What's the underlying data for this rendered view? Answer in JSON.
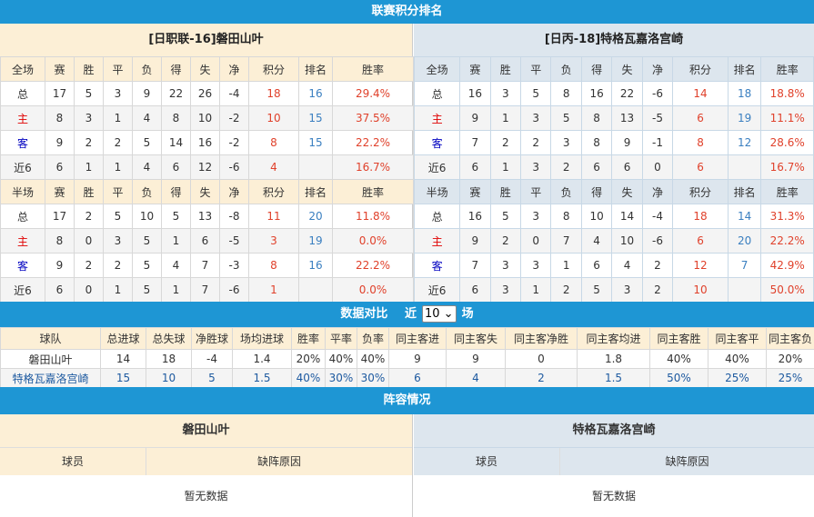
{
  "title": "联赛积分排名",
  "home": {
    "name": "[日职联-16]磐田山叶",
    "full": {
      "header": [
        "全场",
        "赛",
        "胜",
        "平",
        "负",
        "得",
        "失",
        "净",
        "积分",
        "排名",
        "胜率"
      ],
      "rows": [
        [
          "总",
          "17",
          "5",
          "3",
          "9",
          "22",
          "26",
          "-4",
          "18",
          "16",
          "29.4%"
        ],
        [
          "主",
          "8",
          "3",
          "1",
          "4",
          "8",
          "10",
          "-2",
          "10",
          "15",
          "37.5%"
        ],
        [
          "客",
          "9",
          "2",
          "2",
          "5",
          "14",
          "16",
          "-2",
          "8",
          "15",
          "22.2%"
        ],
        [
          "近6",
          "6",
          "1",
          "1",
          "4",
          "6",
          "12",
          "-6",
          "4",
          "",
          "16.7%"
        ]
      ]
    },
    "half": {
      "header": [
        "半场",
        "赛",
        "胜",
        "平",
        "负",
        "得",
        "失",
        "净",
        "积分",
        "排名",
        "胜率"
      ],
      "rows": [
        [
          "总",
          "17",
          "2",
          "5",
          "10",
          "5",
          "13",
          "-8",
          "11",
          "20",
          "11.8%"
        ],
        [
          "主",
          "8",
          "0",
          "3",
          "5",
          "1",
          "6",
          "-5",
          "3",
          "19",
          "0.0%"
        ],
        [
          "客",
          "9",
          "2",
          "2",
          "5",
          "4",
          "7",
          "-3",
          "8",
          "16",
          "22.2%"
        ],
        [
          "近6",
          "6",
          "0",
          "1",
          "5",
          "1",
          "7",
          "-6",
          "1",
          "",
          "0.0%"
        ]
      ]
    }
  },
  "away": {
    "name": "[日丙-18]特格瓦嘉洛宫崎",
    "full": {
      "header": [
        "全场",
        "赛",
        "胜",
        "平",
        "负",
        "得",
        "失",
        "净",
        "积分",
        "排名",
        "胜率"
      ],
      "rows": [
        [
          "总",
          "16",
          "3",
          "5",
          "8",
          "16",
          "22",
          "-6",
          "14",
          "18",
          "18.8%"
        ],
        [
          "主",
          "9",
          "1",
          "3",
          "5",
          "8",
          "13",
          "-5",
          "6",
          "19",
          "11.1%"
        ],
        [
          "客",
          "7",
          "2",
          "2",
          "3",
          "8",
          "9",
          "-1",
          "8",
          "12",
          "28.6%"
        ],
        [
          "近6",
          "6",
          "1",
          "3",
          "2",
          "6",
          "6",
          "0",
          "6",
          "",
          "16.7%"
        ]
      ]
    },
    "half": {
      "header": [
        "半场",
        "赛",
        "胜",
        "平",
        "负",
        "得",
        "失",
        "净",
        "积分",
        "排名",
        "胜率"
      ],
      "rows": [
        [
          "总",
          "16",
          "5",
          "3",
          "8",
          "10",
          "14",
          "-4",
          "18",
          "14",
          "31.3%"
        ],
        [
          "主",
          "9",
          "2",
          "0",
          "7",
          "4",
          "10",
          "-6",
          "6",
          "20",
          "22.2%"
        ],
        [
          "客",
          "7",
          "3",
          "3",
          "1",
          "6",
          "4",
          "2",
          "12",
          "7",
          "42.9%"
        ],
        [
          "近6",
          "6",
          "3",
          "1",
          "2",
          "5",
          "3",
          "2",
          "10",
          "",
          "50.0%"
        ]
      ]
    }
  },
  "compare": {
    "title": "数据对比",
    "recent_prefix": "近",
    "recent_value": "10",
    "recent_suffix": "场",
    "header": [
      "球队",
      "总进球",
      "总失球",
      "净胜球",
      "场均进球",
      "胜率",
      "平率",
      "负率",
      "同主客进",
      "同主客失",
      "同主客净胜",
      "同主客均进",
      "同主客胜",
      "同主客平",
      "同主客负"
    ],
    "rows": [
      [
        "磐田山叶",
        "14",
        "18",
        "-4",
        "1.4",
        "20%",
        "40%",
        "40%",
        "9",
        "9",
        "0",
        "1.8",
        "40%",
        "40%",
        "20%"
      ],
      [
        "特格瓦嘉洛宫崎",
        "15",
        "10",
        "5",
        "1.5",
        "40%",
        "30%",
        "30%",
        "6",
        "4",
        "2",
        "1.5",
        "50%",
        "25%",
        "25%"
      ]
    ]
  },
  "lineup": {
    "title": "阵容情况",
    "home": "磐田山叶",
    "away": "特格瓦嘉洛宫崎",
    "col_player": "球员",
    "col_reason": "缺阵原因",
    "no_data": "暂无数据"
  },
  "colors": {
    "accent": "#1e96d4",
    "home_bg": "#fcefd6",
    "away_bg": "#dde6ee",
    "points": "#e0412b",
    "rank": "#3a7fc0"
  }
}
